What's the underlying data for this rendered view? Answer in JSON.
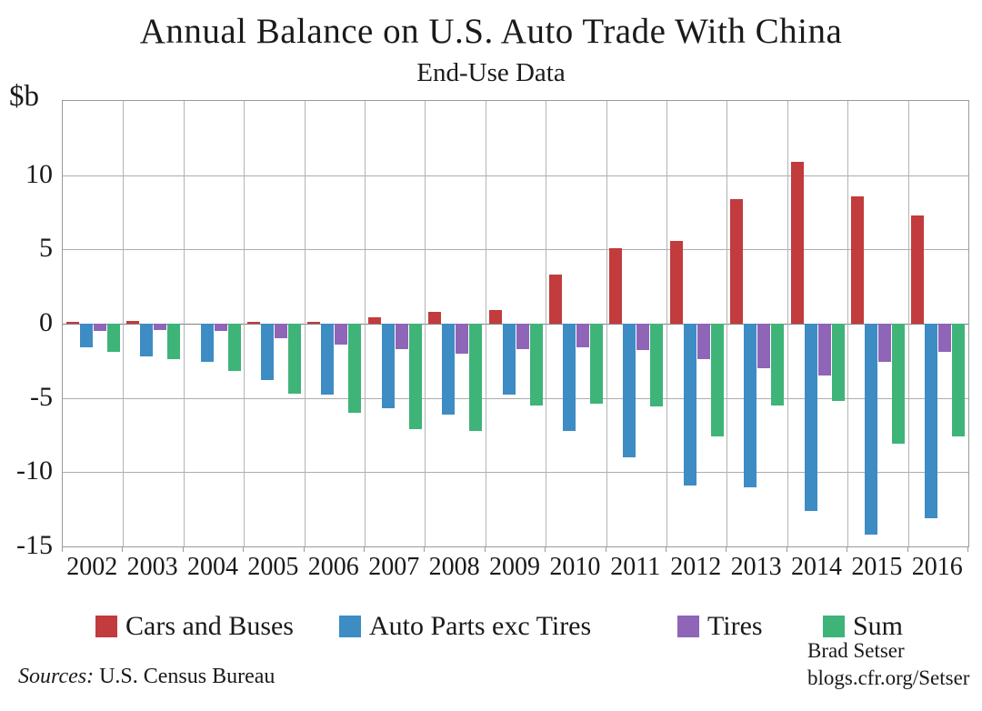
{
  "chart_data": {
    "type": "bar",
    "title": "Annual Balance on U.S. Auto Trade With China",
    "subtitle": "End-Use Data",
    "ylabel": "$b",
    "xlabel": "",
    "ylim": [
      -15,
      15
    ],
    "ytick_interval": 5,
    "yticks_labeled": [
      10,
      5,
      0,
      -5,
      -10,
      -15
    ],
    "grid": true,
    "legend_position": "bottom",
    "categories": [
      "2002",
      "2003",
      "2004",
      "2005",
      "2006",
      "2007",
      "2008",
      "2009",
      "2010",
      "2011",
      "2012",
      "2013",
      "2014",
      "2015",
      "2016"
    ],
    "series": [
      {
        "name": "Cars and Buses",
        "color": "#c23b3d",
        "values": [
          0.1,
          0.2,
          0.0,
          0.1,
          0.1,
          0.4,
          0.8,
          0.9,
          3.3,
          5.1,
          5.6,
          8.4,
          10.9,
          8.6,
          7.3
        ]
      },
      {
        "name": "Auto Parts exc Tires",
        "color": "#3e8cc4",
        "values": [
          -1.6,
          -2.2,
          -2.6,
          -3.8,
          -4.8,
          -5.7,
          -6.1,
          -4.8,
          -7.2,
          -9.0,
          -10.9,
          -11.0,
          -12.6,
          -14.2,
          -13.1
        ]
      },
      {
        "name": "Tires",
        "color": "#8f65b8",
        "values": [
          -0.5,
          -0.4,
          -0.5,
          -1.0,
          -1.4,
          -1.7,
          -2.0,
          -1.7,
          -1.6,
          -1.8,
          -2.4,
          -3.0,
          -3.5,
          -2.6,
          -1.9
        ]
      },
      {
        "name": "Sum",
        "color": "#3eb478",
        "values": [
          -1.9,
          -2.4,
          -3.2,
          -4.7,
          -6.0,
          -7.1,
          -7.2,
          -5.5,
          -5.4,
          -5.6,
          -7.6,
          -5.5,
          -5.2,
          -8.1,
          -7.6
        ]
      }
    ]
  },
  "legend_x_positions": [
    105,
    373,
    745,
    905
  ],
  "footer": {
    "sources_label": "Sources:",
    "sources_text": " U.S. Census Bureau",
    "credit_line1": "Brad Setser",
    "credit_line2": "blogs.cfr.org/Setser"
  }
}
